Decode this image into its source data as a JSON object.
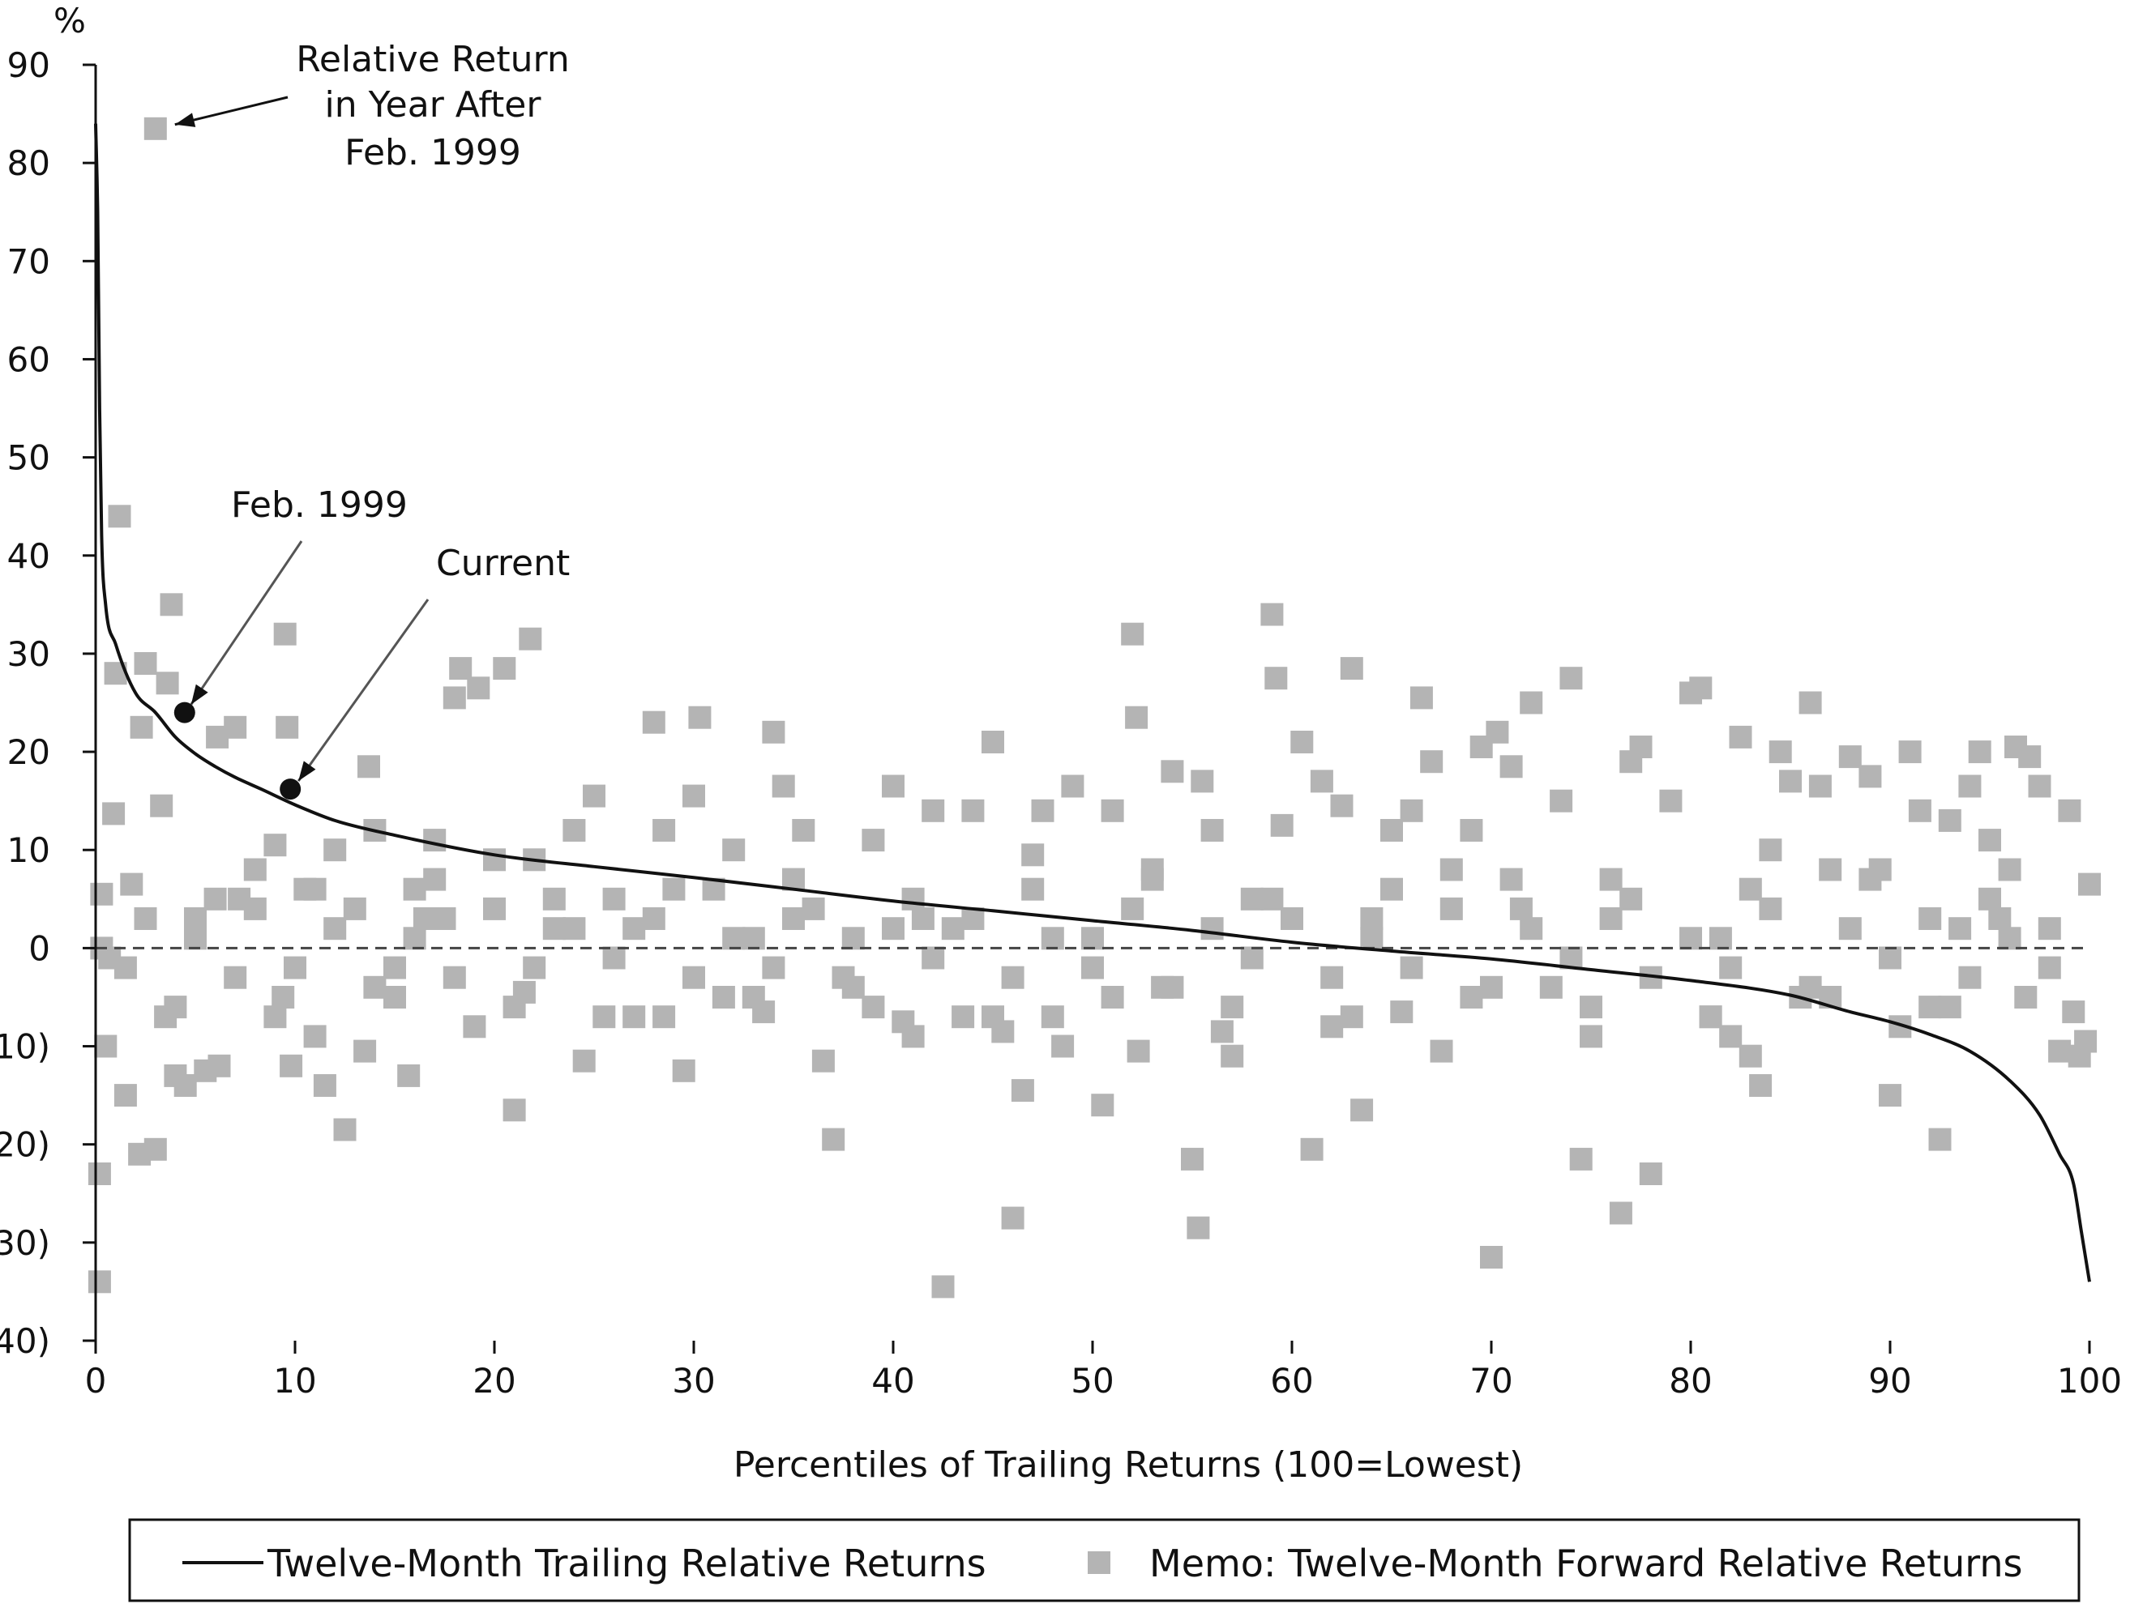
{
  "chart_data": {
    "type": "scatter",
    "ylabel": "%",
    "xlabel": "Percentiles of Trailing Returns (100=Lowest)",
    "xlim": [
      0,
      100
    ],
    "ylim": [
      -40,
      90
    ],
    "x_ticks": [
      0,
      10,
      20,
      30,
      40,
      50,
      60,
      70,
      80,
      90,
      100
    ],
    "y_ticks": [
      -40,
      -30,
      -20,
      -10,
      0,
      10,
      20,
      30,
      40,
      50,
      60,
      70,
      80,
      90
    ],
    "y_tick_labels": [
      "(40)",
      "(30)",
      "(20)",
      "(10)",
      "0",
      "10",
      "20",
      "30",
      "40",
      "50",
      "60",
      "70",
      "80",
      "90"
    ],
    "grid": false,
    "legend_position": "bottom",
    "colors": {
      "line": "#111111",
      "markers": "#b4b4b4",
      "reference_line": "#444444"
    },
    "annotations": {
      "relative_return": {
        "lines": [
          "Relative Return",
          "in Year After",
          "Feb. 1999"
        ],
        "target": [
          3,
          83.5
        ]
      },
      "feb_1999": {
        "text": "Feb. 1999",
        "target": [
          3,
          24
        ]
      },
      "current": {
        "text": "Current",
        "target": [
          8.3,
          16.2
        ]
      }
    },
    "series": [
      {
        "name": "Twelve-Month Trailing Relative Returns",
        "kind": "line",
        "points": [
          [
            0,
            84
          ],
          [
            0.1,
            75
          ],
          [
            0.2,
            55
          ],
          [
            0.3,
            42
          ],
          [
            0.5,
            35
          ],
          [
            1,
            31
          ],
          [
            2,
            26
          ],
          [
            3,
            24
          ],
          [
            4,
            21.5
          ],
          [
            5,
            19.8
          ],
          [
            6,
            18.5
          ],
          [
            7,
            17.4
          ],
          [
            8.3,
            16.2
          ],
          [
            10,
            14.6
          ],
          [
            12,
            13
          ],
          [
            15,
            11.5
          ],
          [
            20,
            9.5
          ],
          [
            25,
            8.3
          ],
          [
            30,
            7.2
          ],
          [
            35,
            6
          ],
          [
            40,
            4.8
          ],
          [
            45,
            3.8
          ],
          [
            50,
            2.8
          ],
          [
            55,
            1.8
          ],
          [
            60,
            0.6
          ],
          [
            65,
            -0.3
          ],
          [
            70,
            -1.1
          ],
          [
            75,
            -2.2
          ],
          [
            80,
            -3.3
          ],
          [
            85,
            -4.8
          ],
          [
            88,
            -6.5
          ],
          [
            90,
            -7.5
          ],
          [
            92,
            -8.8
          ],
          [
            94,
            -10.5
          ],
          [
            96,
            -13.5
          ],
          [
            97.5,
            -17
          ],
          [
            98.5,
            -21
          ],
          [
            99.2,
            -24
          ],
          [
            99.6,
            -29
          ],
          [
            100,
            -34
          ]
        ]
      },
      {
        "name": "Memo: Twelve-Month Forward Relative Returns",
        "kind": "scatter",
        "points": [
          [
            3,
            83.5
          ],
          [
            0.3,
            5.5
          ],
          [
            0.5,
            -10
          ],
          [
            0.2,
            -23
          ],
          [
            0.2,
            -34
          ],
          [
            0.9,
            13.7
          ],
          [
            1,
            28
          ],
          [
            1.2,
            44
          ],
          [
            1.8,
            6.5
          ],
          [
            1.5,
            -15
          ],
          [
            2.2,
            -21
          ],
          [
            2.3,
            22.5
          ],
          [
            2.5,
            29
          ],
          [
            3,
            -20.5
          ],
          [
            3.3,
            14.5
          ],
          [
            3.6,
            27
          ],
          [
            3.8,
            35
          ],
          [
            3.5,
            -7
          ],
          [
            4,
            -13
          ],
          [
            4.5,
            -14
          ],
          [
            5,
            3
          ],
          [
            5.5,
            -12.5
          ],
          [
            6.2,
            -12
          ],
          [
            6.1,
            21.5
          ],
          [
            7,
            22.5
          ],
          [
            7.2,
            5
          ],
          [
            8,
            8
          ],
          [
            9,
            10.5
          ],
          [
            9.5,
            32
          ],
          [
            9.6,
            22.5
          ],
          [
            9.4,
            -5
          ],
          [
            9.8,
            -12
          ],
          [
            10.5,
            6
          ],
          [
            11,
            -9
          ],
          [
            11.5,
            -14
          ],
          [
            12,
            10
          ],
          [
            12.5,
            -18.5
          ],
          [
            13,
            4
          ],
          [
            13.5,
            -10.5
          ],
          [
            13.7,
            18.5
          ],
          [
            14,
            12
          ],
          [
            15,
            -2
          ],
          [
            15.7,
            -13
          ],
          [
            16,
            6
          ],
          [
            16.5,
            3
          ],
          [
            17,
            11
          ],
          [
            17.5,
            3
          ],
          [
            18,
            25.5
          ],
          [
            18.3,
            28.5
          ],
          [
            19,
            -8
          ],
          [
            19.2,
            26.5
          ],
          [
            20,
            9
          ],
          [
            20.5,
            28.5
          ],
          [
            21,
            -16.5
          ],
          [
            21.5,
            -4.5
          ],
          [
            21.8,
            31.5
          ],
          [
            22,
            9
          ],
          [
            23,
            2
          ],
          [
            24,
            12
          ],
          [
            24.5,
            -11.5
          ],
          [
            25,
            15.5
          ],
          [
            25.5,
            -7
          ],
          [
            26,
            5
          ],
          [
            27,
            2
          ],
          [
            28,
            23
          ],
          [
            28.5,
            12
          ],
          [
            28.5,
            -7
          ],
          [
            29.5,
            -12.5
          ],
          [
            30,
            15.5
          ],
          [
            30.3,
            23.5
          ],
          [
            31,
            6
          ],
          [
            31.5,
            -5
          ],
          [
            32,
            10
          ],
          [
            33,
            1
          ],
          [
            33.5,
            -6.5
          ],
          [
            34,
            22
          ],
          [
            34.5,
            16.5
          ],
          [
            35,
            3
          ],
          [
            35.5,
            12
          ],
          [
            36.5,
            -11.5
          ],
          [
            37,
            -19.5
          ],
          [
            37.5,
            -3
          ],
          [
            38,
            1
          ],
          [
            39,
            11
          ],
          [
            40,
            16.5
          ],
          [
            40.5,
            -7.5
          ],
          [
            41,
            -9
          ],
          [
            41.5,
            3
          ],
          [
            42,
            14
          ],
          [
            42.5,
            -34.5
          ],
          [
            43,
            2
          ],
          [
            43.5,
            -7
          ],
          [
            44,
            14
          ],
          [
            45,
            21
          ],
          [
            45.5,
            -8.5
          ],
          [
            46,
            -27.5
          ],
          [
            46.5,
            -14.5
          ],
          [
            47,
            9.5
          ],
          [
            47.5,
            14
          ],
          [
            48,
            -7
          ],
          [
            48.5,
            -10
          ],
          [
            49,
            16.5
          ],
          [
            50,
            1
          ],
          [
            50.5,
            -16
          ],
          [
            51,
            14
          ],
          [
            52,
            32
          ],
          [
            52.2,
            23.5
          ],
          [
            52.3,
            -10.5
          ],
          [
            53,
            8
          ],
          [
            53.5,
            -4
          ],
          [
            54,
            18
          ],
          [
            55,
            -21.5
          ],
          [
            55.3,
            -28.5
          ],
          [
            55.5,
            17
          ],
          [
            56,
            12
          ],
          [
            56.5,
            -8.5
          ],
          [
            57,
            -11
          ],
          [
            58,
            5
          ],
          [
            59,
            34
          ],
          [
            59.2,
            27.5
          ],
          [
            59.5,
            12.5
          ],
          [
            60.5,
            21
          ],
          [
            61,
            -20.5
          ],
          [
            61.5,
            17
          ],
          [
            62,
            -8
          ],
          [
            62.5,
            14.5
          ],
          [
            63,
            28.5
          ],
          [
            63.5,
            -16.5
          ],
          [
            64,
            3
          ],
          [
            65,
            12
          ],
          [
            65.5,
            -6.5
          ],
          [
            66,
            14
          ],
          [
            66.5,
            25.5
          ],
          [
            67,
            19
          ],
          [
            67.5,
            -10.5
          ],
          [
            68,
            8
          ],
          [
            69,
            12
          ],
          [
            69.5,
            20.5
          ],
          [
            70,
            -31.5
          ],
          [
            70.3,
            22
          ],
          [
            71,
            18.5
          ],
          [
            71.5,
            4
          ],
          [
            72,
            25
          ],
          [
            73,
            -4
          ],
          [
            73.5,
            15
          ],
          [
            74,
            27.5
          ],
          [
            74.5,
            -21.5
          ],
          [
            75,
            -9
          ],
          [
            76,
            7
          ],
          [
            76.5,
            -27
          ],
          [
            77,
            19
          ],
          [
            77.5,
            20.5
          ],
          [
            78,
            -23
          ],
          [
            79,
            15
          ],
          [
            80,
            26
          ],
          [
            80.5,
            26.5
          ],
          [
            81,
            -7
          ],
          [
            81.5,
            1
          ],
          [
            82,
            -9
          ],
          [
            82.5,
            21.5
          ],
          [
            83,
            -11
          ],
          [
            83.5,
            -14
          ],
          [
            84,
            10
          ],
          [
            84.5,
            20
          ],
          [
            85,
            17
          ],
          [
            85.5,
            -5
          ],
          [
            86,
            25
          ],
          [
            86.5,
            16.5
          ],
          [
            87,
            8
          ],
          [
            88,
            19.5
          ],
          [
            89,
            17.5
          ],
          [
            89.5,
            8
          ],
          [
            90,
            -15
          ],
          [
            90.5,
            -8
          ],
          [
            91,
            20
          ],
          [
            91.5,
            14
          ],
          [
            92,
            -6
          ],
          [
            92.5,
            -19.5
          ],
          [
            93,
            13
          ],
          [
            93.5,
            2
          ],
          [
            94,
            16.5
          ],
          [
            94.5,
            20
          ],
          [
            95,
            11
          ],
          [
            95.5,
            3
          ],
          [
            96,
            8
          ],
          [
            96.3,
            20.5
          ],
          [
            96.8,
            -5
          ],
          [
            97,
            19.5
          ],
          [
            97.5,
            16.5
          ],
          [
            98,
            2
          ],
          [
            98.5,
            -10.5
          ],
          [
            99,
            14
          ],
          [
            99.2,
            -6.5
          ],
          [
            99.5,
            -11
          ],
          [
            99.8,
            -9.5
          ],
          [
            100,
            6.5
          ],
          [
            0.3,
            0
          ],
          [
            0.7,
            -1
          ],
          [
            1.5,
            -2
          ],
          [
            2.5,
            3
          ],
          [
            5,
            1
          ],
          [
            7,
            -3
          ],
          [
            8,
            4
          ],
          [
            10,
            -2
          ],
          [
            12,
            2
          ],
          [
            14,
            -4
          ],
          [
            16,
            1
          ],
          [
            18,
            -3
          ],
          [
            20,
            4
          ],
          [
            22,
            -2
          ],
          [
            24,
            2
          ],
          [
            26,
            -1
          ],
          [
            28,
            3
          ],
          [
            30,
            -3
          ],
          [
            32,
            1
          ],
          [
            34,
            -2
          ],
          [
            36,
            4
          ],
          [
            38,
            -4
          ],
          [
            40,
            2
          ],
          [
            42,
            -1
          ],
          [
            44,
            3
          ],
          [
            46,
            -3
          ],
          [
            48,
            1
          ],
          [
            50,
            -2
          ],
          [
            52,
            4
          ],
          [
            54,
            -4
          ],
          [
            56,
            2
          ],
          [
            58,
            -1
          ],
          [
            60,
            3
          ],
          [
            62,
            -3
          ],
          [
            64,
            1
          ],
          [
            66,
            -2
          ],
          [
            68,
            4
          ],
          [
            70,
            -4
          ],
          [
            72,
            2
          ],
          [
            74,
            -1
          ],
          [
            76,
            3
          ],
          [
            78,
            -3
          ],
          [
            80,
            1
          ],
          [
            82,
            -2
          ],
          [
            84,
            4
          ],
          [
            86,
            -4
          ],
          [
            88,
            2
          ],
          [
            90,
            -1
          ],
          [
            92,
            3
          ],
          [
            94,
            -3
          ],
          [
            96,
            1
          ],
          [
            98,
            -2
          ],
          [
            6,
            5
          ],
          [
            11,
            6
          ],
          [
            17,
            7
          ],
          [
            23,
            5
          ],
          [
            29,
            6
          ],
          [
            35,
            7
          ],
          [
            41,
            5
          ],
          [
            47,
            6
          ],
          [
            53,
            7
          ],
          [
            59,
            5
          ],
          [
            65,
            6
          ],
          [
            71,
            7
          ],
          [
            77,
            5
          ],
          [
            83,
            6
          ],
          [
            89,
            7
          ],
          [
            95,
            5
          ],
          [
            4,
            -6
          ],
          [
            9,
            -7
          ],
          [
            15,
            -5
          ],
          [
            21,
            -6
          ],
          [
            27,
            -7
          ],
          [
            33,
            -5
          ],
          [
            39,
            -6
          ],
          [
            45,
            -7
          ],
          [
            51,
            -5
          ],
          [
            57,
            -6
          ],
          [
            63,
            -7
          ],
          [
            69,
            -5
          ],
          [
            75,
            -6
          ],
          [
            81,
            -7
          ],
          [
            87,
            -5
          ],
          [
            93,
            -6
          ]
        ]
      }
    ]
  }
}
